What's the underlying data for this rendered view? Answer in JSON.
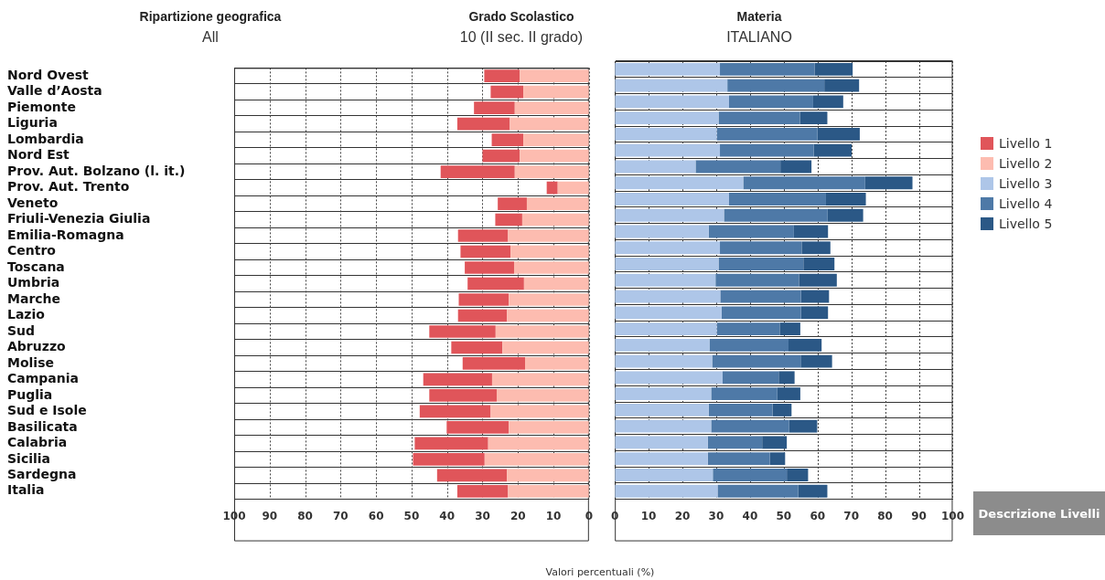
{
  "chart_data": [
    {
      "type": "bar",
      "orientation": "horizontal",
      "stacked": true,
      "grid": true,
      "legend": "right",
      "annotations": [
        "Ripartizione geografica",
        "All",
        "Grado Scolastico",
        "10 (II sec. II grado)",
        "Materia",
        "ITALIANO"
      ],
      "categories": [
        "Nord Ovest",
        "Valle d’Aosta",
        "Piemonte",
        "Liguria",
        "Lombardia",
        "Nord Est",
        "Prov. Aut. Bolzano (l. it.)",
        "Prov. Aut. Trento",
        "Veneto",
        "Friuli-Venezia Giulia",
        "Emilia-Romagna",
        "Centro",
        "Toscana",
        "Umbria",
        "Marche",
        "Lazio",
        "Sud",
        "Abruzzo",
        "Molise",
        "Campania",
        "Puglia",
        "Sud e Isole",
        "Basilicata",
        "Calabria",
        "Sicilia",
        "Sardegna",
        "Italia"
      ],
      "series": [
        {
          "name": "Livello 2",
          "color": "#fdbcb0",
          "values": [
            19.5,
            18.5,
            20.9,
            22.3,
            18.5,
            19.5,
            20.9,
            8.8,
            17.5,
            18.8,
            22.8,
            22.1,
            21.1,
            18.3,
            22.6,
            23.1,
            26.3,
            24.4,
            18.0,
            27.3,
            26.0,
            27.7,
            22.6,
            28.4,
            29.4,
            23.1,
            22.8
          ]
        },
        {
          "name": "Livello 1",
          "color": "#e0555a",
          "values": [
            10.0,
            9.2,
            11.5,
            14.8,
            8.9,
            10.5,
            20.9,
            3.1,
            8.2,
            7.6,
            14.1,
            14.1,
            13.9,
            15.9,
            14.1,
            13.8,
            18.7,
            14.4,
            17.6,
            19.4,
            19.0,
            20.0,
            17.5,
            20.7,
            20.2,
            19.7,
            14.3
          ]
        }
      ],
      "xlim": [
        100,
        0
      ],
      "xticks": [
        100,
        90,
        80,
        70,
        60,
        50,
        40,
        30,
        20,
        10,
        0
      ]
    },
    {
      "type": "bar",
      "orientation": "horizontal",
      "stacked": true,
      "grid": true,
      "legend": "right",
      "tick_labels": "x",
      "xlabel": "Valori percentuali (%)",
      "annotations": [
        "Descrizione Livelli"
      ],
      "categories": [
        null,
        null,
        null,
        null,
        null,
        null,
        null,
        null,
        null,
        null,
        null,
        null,
        null,
        null,
        null,
        null,
        null,
        null,
        null,
        null,
        null,
        null,
        null,
        null,
        null,
        null,
        null
      ],
      "series": [
        {
          "name": "Livello 3",
          "color": "#aec6e8",
          "values": [
            31.1,
            33.3,
            33.8,
            30.7,
            30.2,
            31.1,
            23.9,
            38.0,
            33.8,
            32.3,
            27.8,
            31.1,
            30.7,
            29.8,
            31.2,
            31.6,
            30.2,
            28.0,
            28.8,
            31.9,
            28.5,
            27.8,
            28.5,
            27.5,
            27.5,
            29.0,
            30.4
          ]
        },
        {
          "name": "Livello 4",
          "color": "#4e79a7",
          "values": [
            28.0,
            28.7,
            24.9,
            24.1,
            29.8,
            27.8,
            25.1,
            36.1,
            28.7,
            30.7,
            25.2,
            24.2,
            25.1,
            24.7,
            23.9,
            23.5,
            18.6,
            23.4,
            26.2,
            16.6,
            19.6,
            18.9,
            23.1,
            16.1,
            18.4,
            21.9,
            23.9
          ]
        },
        {
          "name": "Livello 5",
          "color": "#2b5886",
          "values": [
            11.3,
            10.3,
            8.9,
            8.1,
            12.5,
            11.2,
            9.2,
            14.0,
            11.8,
            10.5,
            10.1,
            8.5,
            9.2,
            11.2,
            8.3,
            8.0,
            6.1,
            9.8,
            9.3,
            4.7,
            6.8,
            5.6,
            8.3,
            7.3,
            4.5,
            6.3,
            8.6
          ]
        }
      ],
      "xlim": [
        0,
        100
      ],
      "xticks": [
        0,
        10,
        20,
        30,
        40,
        50,
        60,
        70,
        80,
        90,
        100
      ]
    }
  ]
}
